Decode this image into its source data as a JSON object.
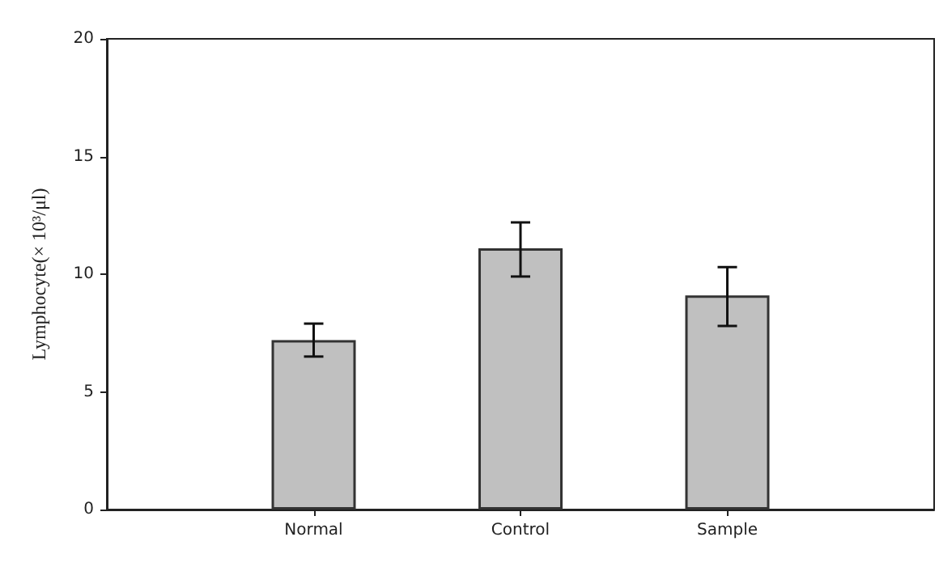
{
  "chart_data": {
    "type": "bar",
    "ylabel": "Lymphocyte(× 10³/μl)",
    "categories": [
      "Normal",
      "Control",
      "Sample"
    ],
    "values": [
      7.2,
      11.1,
      9.1
    ],
    "errors": [
      0.7,
      [
        9.9,
        12.2
      ],
      [
        7.8,
        10.3
      ]
    ],
    "color": "#c0c0c0",
    "ylim": [
      0,
      20
    ],
    "yticks": [
      0,
      5,
      10,
      15,
      20
    ],
    "grid": false
  }
}
